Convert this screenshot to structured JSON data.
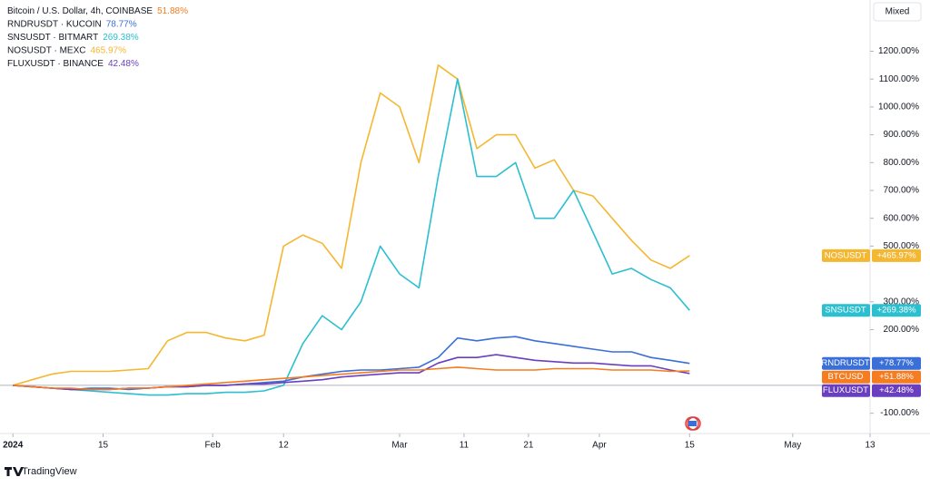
{
  "chart_data": {
    "type": "line",
    "scale_button": "Mixed",
    "brand": "TradingView",
    "x": [
      "2024-01-01",
      "2024-01-04",
      "2024-01-07",
      "2024-01-10",
      "2024-01-13",
      "2024-01-16",
      "2024-01-19",
      "2024-01-22",
      "2024-01-25",
      "2024-01-28",
      "2024-01-31",
      "2024-02-03",
      "2024-02-06",
      "2024-02-09",
      "2024-02-12",
      "2024-02-15",
      "2024-02-18",
      "2024-02-21",
      "2024-02-24",
      "2024-02-27",
      "2024-03-01",
      "2024-03-04",
      "2024-03-07",
      "2024-03-10",
      "2024-03-13",
      "2024-03-16",
      "2024-03-19",
      "2024-03-22",
      "2024-03-25",
      "2024-03-28",
      "2024-03-31",
      "2024-04-03",
      "2024-04-06",
      "2024-04-09",
      "2024-04-12",
      "2024-04-15"
    ],
    "xlim": [
      "2023-12-30",
      "2024-05-13"
    ],
    "xticks": [
      {
        "value": "2024-01-01",
        "label": "2024"
      },
      {
        "value": "2024-01-15",
        "label": "15"
      },
      {
        "value": "2024-02-01",
        "label": "Feb"
      },
      {
        "value": "2024-02-12",
        "label": "12"
      },
      {
        "value": "2024-03-01",
        "label": "Mar"
      },
      {
        "value": "2024-03-11",
        "label": "11"
      },
      {
        "value": "2024-03-21",
        "label": "21"
      },
      {
        "value": "2024-04-01",
        "label": "Apr"
      },
      {
        "value": "2024-04-15",
        "label": "15"
      },
      {
        "value": "2024-05-01",
        "label": "May"
      },
      {
        "value": "2024-05-13",
        "label": "13"
      }
    ],
    "ylim": [
      -173,
      1384
    ],
    "yticks": [
      {
        "value": 1200,
        "label": "1200.00%"
      },
      {
        "value": 1100,
        "label": "1100.00%"
      },
      {
        "value": 1000,
        "label": "1000.00%"
      },
      {
        "value": 900,
        "label": "900.00%"
      },
      {
        "value": 800,
        "label": "800.00%"
      },
      {
        "value": 700,
        "label": "700.00%"
      },
      {
        "value": 600,
        "label": "600.00%"
      },
      {
        "value": 500,
        "label": "500.00%"
      },
      {
        "value": 300,
        "label": "300.00%"
      },
      {
        "value": 200,
        "label": "200.00%"
      },
      {
        "value": -100,
        "label": "-100.00%"
      }
    ],
    "grid": false,
    "series": [
      {
        "name": "Bitcoin / U.S. Dollar, 4h, COINBASE",
        "legend_value": "51.88%",
        "symbol": "BTCUSD",
        "tag_value": "+51.88%",
        "color": "#f57c1f",
        "values": [
          0,
          -5,
          -10,
          -10,
          -15,
          -15,
          -10,
          -10,
          -5,
          0,
          5,
          10,
          15,
          20,
          25,
          30,
          35,
          40,
          45,
          50,
          55,
          55,
          60,
          65,
          60,
          55,
          55,
          55,
          60,
          60,
          60,
          55,
          55,
          55,
          50,
          51.88
        ]
      },
      {
        "name": "RNDRUSDT · KUCOIN",
        "legend_value": "78.77%",
        "symbol": "RNDRUSDT",
        "tag_value": "+78.77%",
        "color": "#3a6fd8",
        "values": [
          0,
          -5,
          -10,
          -15,
          -10,
          -10,
          -15,
          -10,
          -5,
          -5,
          0,
          0,
          5,
          10,
          15,
          30,
          40,
          50,
          55,
          55,
          60,
          65,
          100,
          170,
          160,
          170,
          175,
          160,
          150,
          140,
          130,
          120,
          120,
          100,
          90,
          78.77
        ]
      },
      {
        "name": "SNSUSDT · BITMART",
        "legend_value": "269.38%",
        "symbol": "SNSUSDT",
        "tag_value": "+269.38%",
        "color": "#2bbfd0",
        "values": [
          0,
          -5,
          -10,
          -15,
          -20,
          -25,
          -30,
          -35,
          -35,
          -30,
          -30,
          -25,
          -25,
          -20,
          0,
          150,
          250,
          200,
          300,
          500,
          400,
          350,
          750,
          1100,
          750,
          750,
          800,
          600,
          600,
          700,
          550,
          400,
          420,
          380,
          350,
          269.38
        ]
      },
      {
        "name": "NOSUSDT · MEXC",
        "legend_value": "465.97%",
        "symbol": "NOSUSDT",
        "tag_value": "+465.97%",
        "color": "#f4b731",
        "values": [
          0,
          20,
          40,
          50,
          50,
          50,
          55,
          60,
          160,
          190,
          190,
          170,
          160,
          180,
          500,
          540,
          510,
          420,
          800,
          1050,
          1000,
          800,
          1150,
          1100,
          850,
          900,
          900,
          780,
          810,
          700,
          680,
          600,
          520,
          450,
          420,
          465.97
        ]
      },
      {
        "name": "FLUXUSDT · BINANCE",
        "legend_value": "42.48%",
        "symbol": "FLUXUSDT",
        "tag_value": "+42.48%",
        "color": "#6a3fbf",
        "values": [
          0,
          -5,
          -10,
          -15,
          -15,
          -15,
          -10,
          -10,
          -5,
          -5,
          0,
          0,
          5,
          5,
          10,
          15,
          20,
          30,
          35,
          40,
          45,
          45,
          80,
          100,
          100,
          110,
          100,
          90,
          85,
          80,
          80,
          75,
          70,
          70,
          55,
          42.48
        ]
      }
    ]
  }
}
